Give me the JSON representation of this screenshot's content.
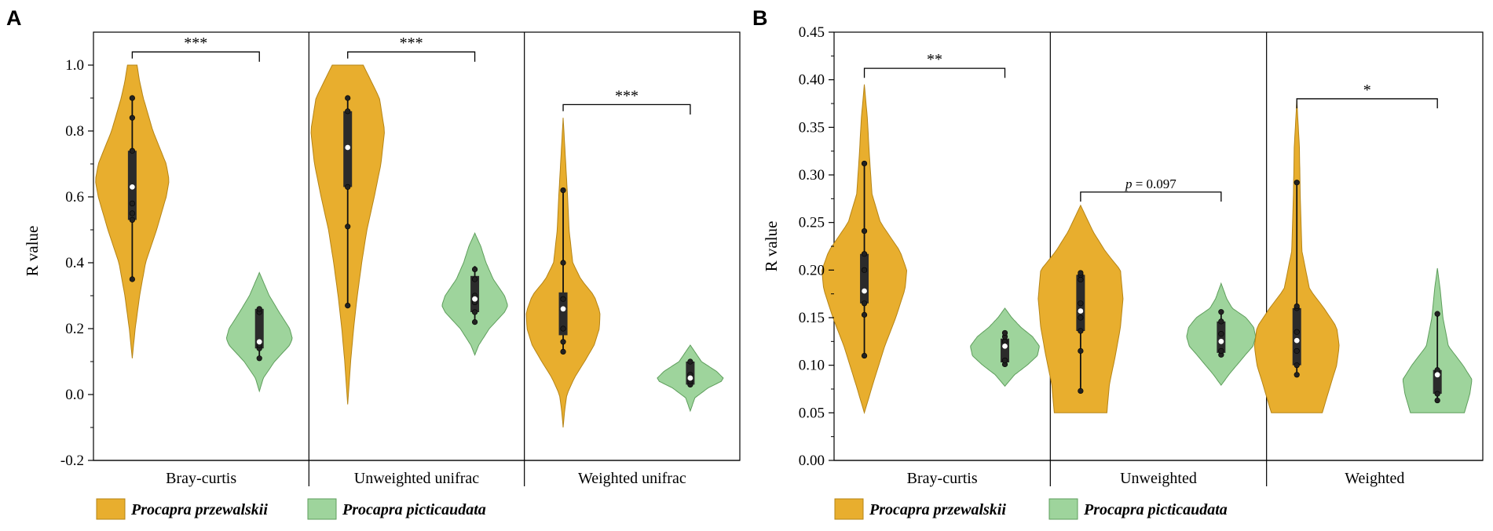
{
  "colors": {
    "przewalskii": "#E8AE2E",
    "przewalskii_edge": "#B58416",
    "picticaudata": "#9ED49C",
    "picticaudata_edge": "#5E9E5C",
    "box": "#2B2B2B",
    "median": "#FFFFFF"
  },
  "legend": {
    "entries": [
      "Procapra przewalskii",
      "Procapra picticaudata"
    ]
  },
  "chart_data": [
    {
      "type": "violin",
      "panel": "A",
      "ylabel": "R value",
      "ylim": [
        -0.2,
        1.1
      ],
      "yticks": [
        -0.2,
        0.0,
        0.2,
        0.4,
        0.6,
        0.8,
        1.0
      ],
      "ytick_labels": [
        "-0.2",
        "0.0",
        "0.2",
        "0.4",
        "0.6",
        "0.8",
        "1.0"
      ],
      "groups": [
        {
          "label": "Bray-curtis",
          "significance": {
            "text": "***",
            "y": 1.04,
            "tick_left_to": 1.02,
            "tick_right_to": 1.01
          },
          "series": [
            {
              "name": "Procapra przewalskii",
              "range": [
                0.11,
                1.0
              ],
              "q1": 0.53,
              "median": 0.63,
              "q3": 0.74,
              "whisker": [
                0.35,
                0.9
              ],
              "points": [
                0.35,
                0.53,
                0.55,
                0.58,
                0.63,
                0.74,
                0.84,
                0.9
              ],
              "density": [
                [
                  0.11,
                  0.0
                ],
                [
                  0.2,
                  0.08
                ],
                [
                  0.3,
                  0.2
                ],
                [
                  0.4,
                  0.36
                ],
                [
                  0.5,
                  0.66
                ],
                [
                  0.6,
                  0.92
                ],
                [
                  0.65,
                  1.0
                ],
                [
                  0.7,
                  0.92
                ],
                [
                  0.8,
                  0.56
                ],
                [
                  0.9,
                  0.3
                ],
                [
                  0.95,
                  0.2
                ],
                [
                  1.0,
                  0.13
                ]
              ]
            },
            {
              "name": "Procapra picticaudata",
              "range": [
                0.01,
                0.37
              ],
              "q1": 0.14,
              "median": 0.16,
              "q3": 0.26,
              "whisker": [
                0.11,
                0.26
              ],
              "points": [
                0.11,
                0.14,
                0.15,
                0.16,
                0.25,
                0.26
              ],
              "density": [
                [
                  0.01,
                  0.0
                ],
                [
                  0.05,
                  0.12
                ],
                [
                  0.1,
                  0.46
                ],
                [
                  0.15,
                  0.92
                ],
                [
                  0.17,
                  1.0
                ],
                [
                  0.2,
                  0.92
                ],
                [
                  0.25,
                  0.6
                ],
                [
                  0.3,
                  0.3
                ],
                [
                  0.37,
                  0.0
                ]
              ]
            }
          ]
        },
        {
          "label": "Unweighted unifrac",
          "significance": {
            "text": "***",
            "y": 1.04,
            "tick_left_to": 1.02,
            "tick_right_to": 1.01
          },
          "series": [
            {
              "name": "Procapra przewalskii",
              "range": [
                -0.03,
                1.0
              ],
              "q1": 0.63,
              "median": 0.75,
              "q3": 0.86,
              "whisker": [
                0.27,
                0.9
              ],
              "points": [
                0.27,
                0.51,
                0.63,
                0.75,
                0.86,
                0.9
              ],
              "density": [
                [
                  -0.03,
                  0.0
                ],
                [
                  0.1,
                  0.08
                ],
                [
                  0.2,
                  0.16
                ],
                [
                  0.3,
                  0.26
                ],
                [
                  0.4,
                  0.38
                ],
                [
                  0.5,
                  0.52
                ],
                [
                  0.6,
                  0.72
                ],
                [
                  0.7,
                  0.9
                ],
                [
                  0.8,
                  1.0
                ],
                [
                  0.9,
                  0.86
                ],
                [
                  0.95,
                  0.64
                ],
                [
                  1.0,
                  0.42
                ]
              ]
            },
            {
              "name": "Procapra picticaudata",
              "range": [
                0.12,
                0.49
              ],
              "q1": 0.25,
              "median": 0.29,
              "q3": 0.36,
              "whisker": [
                0.22,
                0.39
              ],
              "points": [
                0.22,
                0.25,
                0.28,
                0.3,
                0.35,
                0.38
              ],
              "density": [
                [
                  0.12,
                  0.0
                ],
                [
                  0.15,
                  0.12
                ],
                [
                  0.2,
                  0.44
                ],
                [
                  0.25,
                  0.9
                ],
                [
                  0.27,
                  1.0
                ],
                [
                  0.3,
                  0.9
                ],
                [
                  0.35,
                  0.56
                ],
                [
                  0.4,
                  0.34
                ],
                [
                  0.45,
                  0.18
                ],
                [
                  0.49,
                  0.0
                ]
              ]
            }
          ]
        },
        {
          "label": "Weighted unifrac",
          "significance": {
            "text": "***",
            "y": 0.88,
            "tick_left_to": 0.86,
            "tick_right_to": 0.85
          },
          "series": [
            {
              "name": "Procapra przewalskii",
              "range": [
                -0.1,
                0.84
              ],
              "q1": 0.18,
              "median": 0.26,
              "q3": 0.31,
              "whisker": [
                0.13,
                0.62
              ],
              "points": [
                0.13,
                0.16,
                0.2,
                0.26,
                0.29,
                0.4,
                0.62
              ],
              "density": [
                [
                  -0.1,
                  0.0
                ],
                [
                  -0.05,
                  0.04
                ],
                [
                  0.0,
                  0.1
                ],
                [
                  0.05,
                  0.3
                ],
                [
                  0.1,
                  0.58
                ],
                [
                  0.15,
                  0.84
                ],
                [
                  0.2,
                  0.98
                ],
                [
                  0.25,
                  1.0
                ],
                [
                  0.3,
                  0.84
                ],
                [
                  0.35,
                  0.48
                ],
                [
                  0.4,
                  0.26
                ],
                [
                  0.5,
                  0.16
                ],
                [
                  0.6,
                  0.12
                ],
                [
                  0.7,
                  0.07
                ],
                [
                  0.84,
                  0.0
                ]
              ]
            },
            {
              "name": "Procapra picticaudata",
              "range": [
                -0.05,
                0.15
              ],
              "q1": 0.03,
              "median": 0.05,
              "q3": 0.1,
              "whisker": [
                0.03,
                0.1
              ],
              "points": [
                0.03,
                0.04,
                0.05,
                0.06,
                0.1
              ],
              "density": [
                [
                  -0.05,
                  0.0
                ],
                [
                  -0.01,
                  0.14
                ],
                [
                  0.02,
                  0.54
                ],
                [
                  0.04,
                  0.94
                ],
                [
                  0.05,
                  1.0
                ],
                [
                  0.07,
                  0.8
                ],
                [
                  0.1,
                  0.34
                ],
                [
                  0.15,
                  0.0
                ]
              ]
            }
          ]
        }
      ]
    },
    {
      "type": "violin",
      "panel": "B",
      "ylabel": "R value",
      "ylim": [
        0.0,
        0.45
      ],
      "yticks": [
        0.0,
        0.05,
        0.1,
        0.15,
        0.2,
        0.25,
        0.3,
        0.35,
        0.4,
        0.45
      ],
      "ytick_labels": [
        "0.00",
        "0.05",
        "0.10",
        "0.15",
        "0.20",
        "0.25",
        "0.30",
        "0.35",
        "0.40",
        "0.45"
      ],
      "groups": [
        {
          "label": "Bray-curtis",
          "significance": {
            "text": "**",
            "y": 0.412,
            "tick_left_to": 0.402,
            "tick_right_to": 0.402
          },
          "series": [
            {
              "name": "Procapra przewalskii",
              "range": [
                0.05,
                0.395
              ],
              "q1": 0.165,
              "median": 0.178,
              "q3": 0.217,
              "whisker": [
                0.11,
                0.312
              ],
              "points": [
                0.11,
                0.153,
                0.165,
                0.178,
                0.2,
                0.217,
                0.241,
                0.312
              ],
              "density": [
                [
                  0.05,
                  0.0
                ],
                [
                  0.08,
                  0.2
                ],
                [
                  0.12,
                  0.48
                ],
                [
                  0.15,
                  0.74
                ],
                [
                  0.18,
                  0.96
                ],
                [
                  0.2,
                  1.0
                ],
                [
                  0.22,
                  0.84
                ],
                [
                  0.25,
                  0.38
                ],
                [
                  0.28,
                  0.18
                ],
                [
                  0.32,
                  0.12
                ],
                [
                  0.36,
                  0.07
                ],
                [
                  0.395,
                  0.0
                ]
              ]
            },
            {
              "name": "Procapra picticaudata",
              "range": [
                0.078,
                0.16
              ],
              "q1": 0.103,
              "median": 0.12,
              "q3": 0.128,
              "whisker": [
                0.101,
                0.134
              ],
              "points": [
                0.101,
                0.105,
                0.12,
                0.125,
                0.13,
                0.134
              ],
              "density": [
                [
                  0.078,
                  0.0
                ],
                [
                  0.09,
                  0.28
                ],
                [
                  0.1,
                  0.64
                ],
                [
                  0.11,
                  0.94
                ],
                [
                  0.12,
                  1.0
                ],
                [
                  0.13,
                  0.8
                ],
                [
                  0.14,
                  0.46
                ],
                [
                  0.15,
                  0.2
                ],
                [
                  0.16,
                  0.0
                ]
              ]
            }
          ]
        },
        {
          "label": "Unweighted",
          "significance": {
            "text": "p = 0.097",
            "y": 0.282,
            "tick_left_to": 0.272,
            "tick_right_to": 0.272
          },
          "series": [
            {
              "name": "Procapra przewalskii",
              "range": [
                0.05,
                0.268
              ],
              "q1": 0.136,
              "median": 0.157,
              "q3": 0.195,
              "whisker": [
                0.073,
                0.197
              ],
              "points": [
                0.073,
                0.115,
                0.136,
                0.15,
                0.157,
                0.165,
                0.19,
                0.195,
                0.197
              ],
              "density": [
                [
                  0.05,
                  0.62
                ],
                [
                  0.08,
                  0.68
                ],
                [
                  0.11,
                  0.82
                ],
                [
                  0.14,
                  0.94
                ],
                [
                  0.17,
                  1.0
                ],
                [
                  0.2,
                  0.94
                ],
                [
                  0.22,
                  0.58
                ],
                [
                  0.24,
                  0.3
                ],
                [
                  0.268,
                  0.0
                ]
              ]
            },
            {
              "name": "Procapra picticaudata",
              "range": [
                0.079,
                0.186
              ],
              "q1": 0.113,
              "median": 0.125,
              "q3": 0.146,
              "whisker": [
                0.111,
                0.156
              ],
              "points": [
                0.111,
                0.115,
                0.125,
                0.133,
                0.146,
                0.156
              ],
              "density": [
                [
                  0.079,
                  0.0
                ],
                [
                  0.09,
                  0.22
                ],
                [
                  0.11,
                  0.68
                ],
                [
                  0.12,
                  0.92
                ],
                [
                  0.13,
                  1.0
                ],
                [
                  0.14,
                  0.94
                ],
                [
                  0.15,
                  0.72
                ],
                [
                  0.16,
                  0.32
                ],
                [
                  0.17,
                  0.16
                ],
                [
                  0.186,
                  0.0
                ]
              ]
            }
          ]
        },
        {
          "label": "Weighted",
          "significance": {
            "text": "*",
            "y": 0.38,
            "tick_left_to": 0.37,
            "tick_right_to": 0.37
          },
          "series": [
            {
              "name": "Procapra przewalskii",
              "range": [
                0.05,
                0.378
              ],
              "q1": 0.1,
              "median": 0.126,
              "q3": 0.16,
              "whisker": [
                0.09,
                0.292
              ],
              "points": [
                0.09,
                0.1,
                0.115,
                0.126,
                0.135,
                0.16,
                0.162,
                0.292
              ],
              "density": [
                [
                  0.05,
                  0.6
                ],
                [
                  0.08,
                  0.8
                ],
                [
                  0.1,
                  0.94
                ],
                [
                  0.12,
                  1.0
                ],
                [
                  0.14,
                  0.94
                ],
                [
                  0.16,
                  0.64
                ],
                [
                  0.18,
                  0.3
                ],
                [
                  0.22,
                  0.12
                ],
                [
                  0.28,
                  0.08
                ],
                [
                  0.33,
                  0.06
                ],
                [
                  0.378,
                  0.0
                ]
              ]
            },
            {
              "name": "Procapra picticaudata",
              "range": [
                0.05,
                0.202
              ],
              "q1": 0.07,
              "median": 0.09,
              "q3": 0.095,
              "whisker": [
                0.063,
                0.154
              ],
              "points": [
                0.063,
                0.07,
                0.09,
                0.093,
                0.095,
                0.154
              ],
              "density": [
                [
                  0.05,
                  0.78
                ],
                [
                  0.07,
                  0.94
                ],
                [
                  0.085,
                  1.0
                ],
                [
                  0.1,
                  0.74
                ],
                [
                  0.12,
                  0.32
                ],
                [
                  0.15,
                  0.16
                ],
                [
                  0.18,
                  0.08
                ],
                [
                  0.202,
                  0.0
                ]
              ]
            }
          ]
        }
      ]
    }
  ]
}
